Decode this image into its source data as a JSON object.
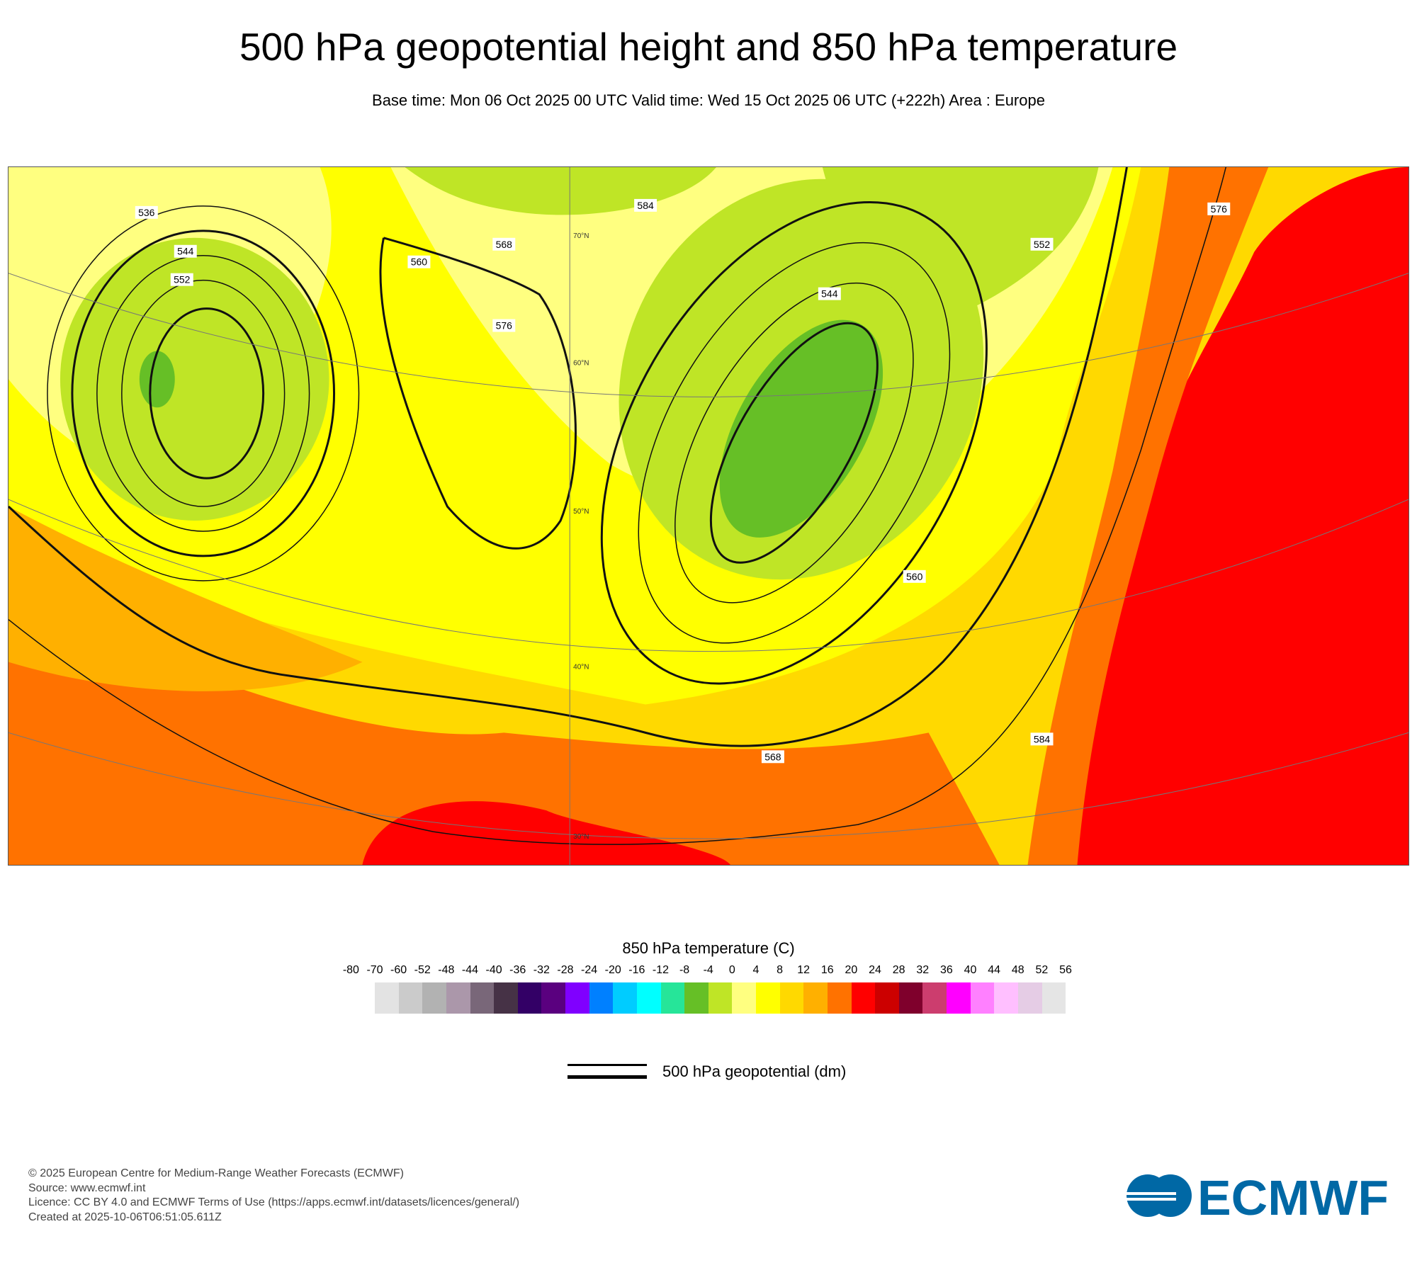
{
  "title": "500 hPa geopotential height and 850 hPa temperature",
  "subtitle": "Base time: Mon 06 Oct 2025 00 UTC Valid time: Wed 15 Oct 2025 06 UTC (+222h) Area : Europe",
  "chart_data": {
    "type": "heatmap",
    "title": "500 hPa geopotential height and 850 hPa temperature",
    "area": "Europe",
    "colorbar": {
      "label": "850 hPa temperature (C)",
      "ticks": [
        "-80",
        "-70",
        "-60",
        "-52",
        "-48",
        "-44",
        "-40",
        "-36",
        "-32",
        "-28",
        "-24",
        "-20",
        "-16",
        "-12",
        "-8",
        "-4",
        "0",
        "4",
        "8",
        "12",
        "16",
        "20",
        "24",
        "28",
        "32",
        "36",
        "40",
        "44",
        "48",
        "52",
        "56"
      ],
      "colors": [
        "#e3e3e3",
        "#cbcbcb",
        "#b2b2b2",
        "#ab97aa",
        "#796779",
        "#463246",
        "#330066",
        "#5a007f",
        "#8000ff",
        "#0080ff",
        "#00ccff",
        "#00ffff",
        "#26e599",
        "#66bf26",
        "#bfe526",
        "#ffff80",
        "#ffff00",
        "#ffd900",
        "#ffb000",
        "#ff7200",
        "#ff0000",
        "#cc0000",
        "#7f002c",
        "#cc3d6e",
        "#ff00ff",
        "#ff80ff",
        "#ffbfff",
        "#e5cce5",
        "#e5e5e5"
      ]
    },
    "contour_legend": "500 hPa geopotential (dm)",
    "contour_labels": [
      "536",
      "544",
      "552",
      "560",
      "568",
      "576",
      "584",
      "544",
      "552",
      "560",
      "568",
      "576",
      "584"
    ],
    "lat_labels": [
      "70°N",
      "60°N",
      "50°N",
      "40°N",
      "30°N"
    ]
  },
  "footer": {
    "lines": [
      "© 2025 European Centre for Medium-Range Weather Forecasts (ECMWF)",
      "Source: www.ecmwf.int",
      "Licence: CC BY 4.0 and ECMWF Terms of Use (https://apps.ecmwf.int/datasets/licences/general/)",
      "Created at 2025-10-06T06:51:05.611Z"
    ],
    "logo_text": "ECMWF"
  }
}
